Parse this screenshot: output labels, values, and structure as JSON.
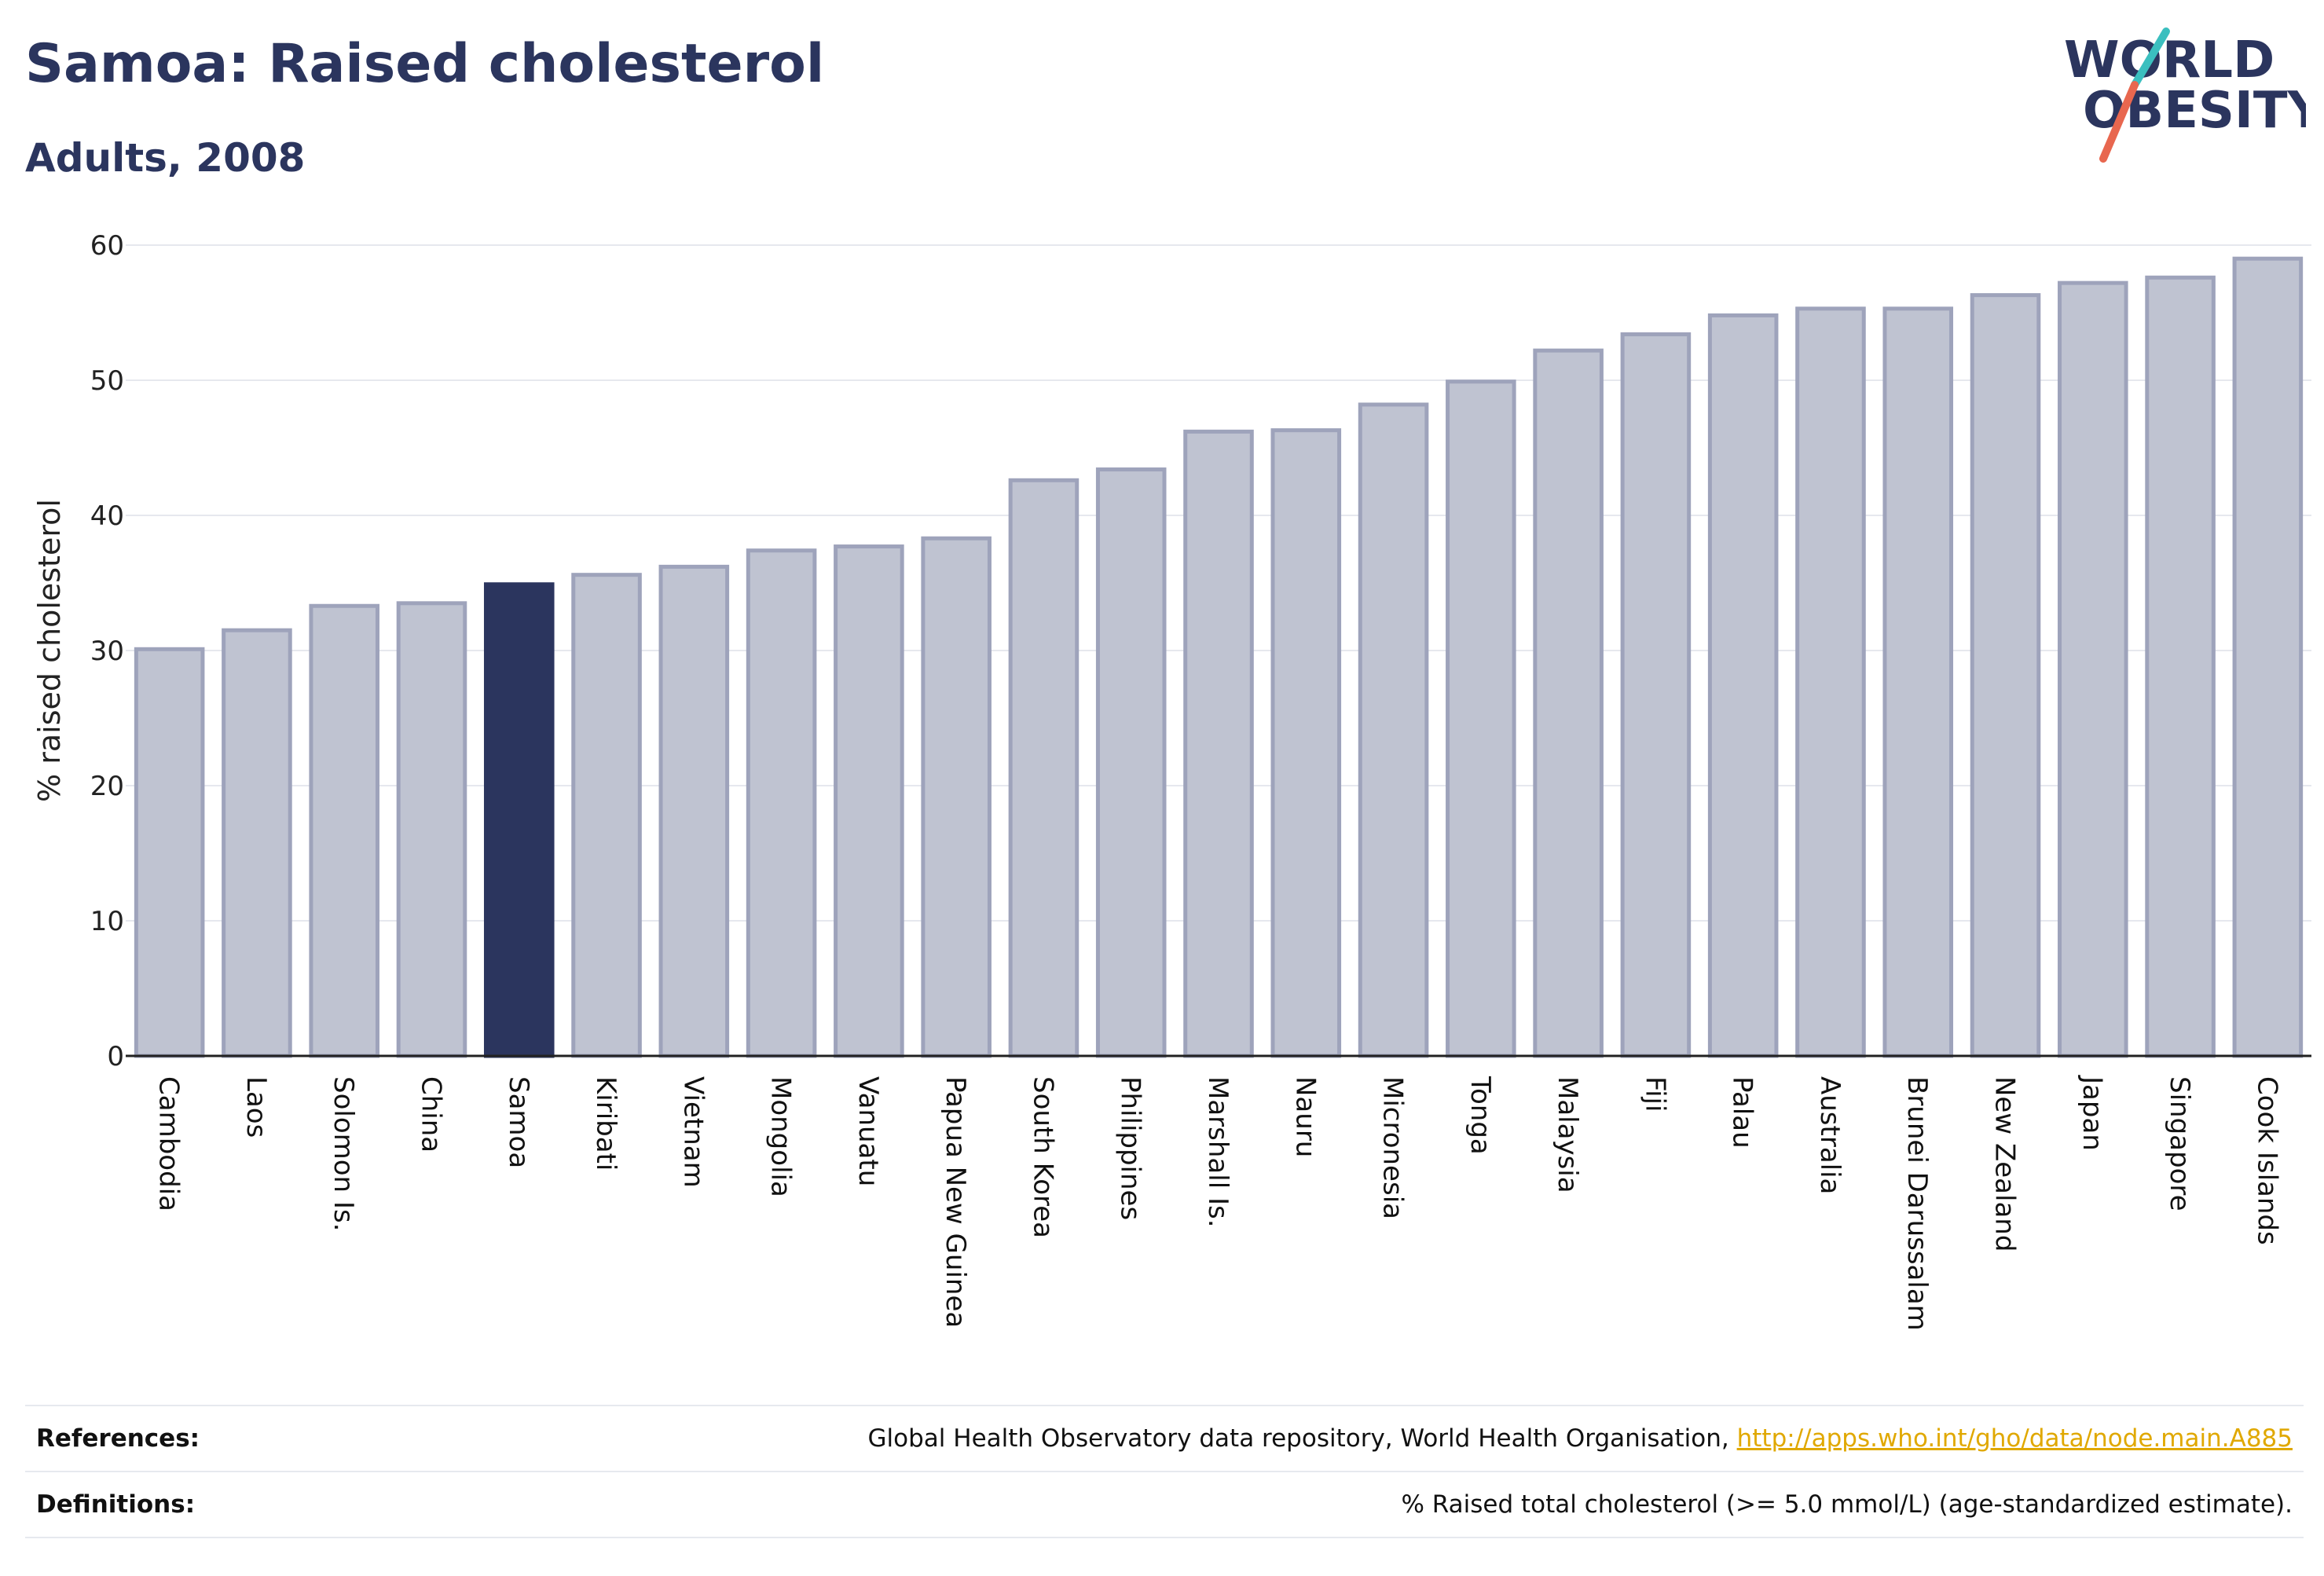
{
  "header": {
    "title": "Samoa: Raised cholesterol",
    "subtitle": "Adults, 2008"
  },
  "logo": {
    "line1": "WORLD",
    "line2": "OBESITY",
    "text_color": "#2b355e",
    "slash_colors": [
      "#3bbfbf",
      "#e8674f"
    ]
  },
  "chart_data": {
    "type": "bar",
    "title": "Samoa: Raised cholesterol",
    "subtitle": "Adults, 2008",
    "xlabel": "",
    "ylabel": "% raised cholesterol",
    "ylim": [
      0,
      60
    ],
    "yticks": [
      0,
      10,
      20,
      30,
      40,
      50,
      60
    ],
    "grid": true,
    "highlight": "Samoa",
    "colors": {
      "bar": "#bfc3d1",
      "bar_border": "#9ea3bb",
      "highlight": "#2b355e",
      "grid": "#e6e8ee",
      "axis": "#222222"
    },
    "categories": [
      "Cambodia",
      "Laos",
      "Solomon Is.",
      "China",
      "Samoa",
      "Kiribati",
      "Vietnam",
      "Mongolia",
      "Vanuatu",
      "Papua New Guinea",
      "South Korea",
      "Philippines",
      "Marshall Is.",
      "Nauru",
      "Micronesia",
      "Tonga",
      "Malaysia",
      "Fiji",
      "Palau",
      "Australia",
      "Brunei Darussalam",
      "New Zealand",
      "Japan",
      "Singapore",
      "Cook Islands"
    ],
    "values": [
      30.1,
      31.5,
      33.3,
      33.5,
      34.9,
      35.6,
      36.2,
      37.4,
      37.7,
      38.3,
      42.6,
      43.4,
      46.2,
      46.3,
      48.2,
      49.9,
      52.2,
      53.4,
      54.8,
      55.3,
      55.3,
      56.3,
      57.2,
      57.6,
      59.0
    ]
  },
  "footer": {
    "references_label": "References:",
    "references_text": "Global Health Observatory data repository, World Health Organisation,",
    "references_link": "http://apps.who.int/gho/data/node.main.A885",
    "definitions_label": "Definitions:",
    "definitions_text": "% Raised total cholesterol (>= 5.0 mmol/L) (age-standardized estimate)."
  }
}
